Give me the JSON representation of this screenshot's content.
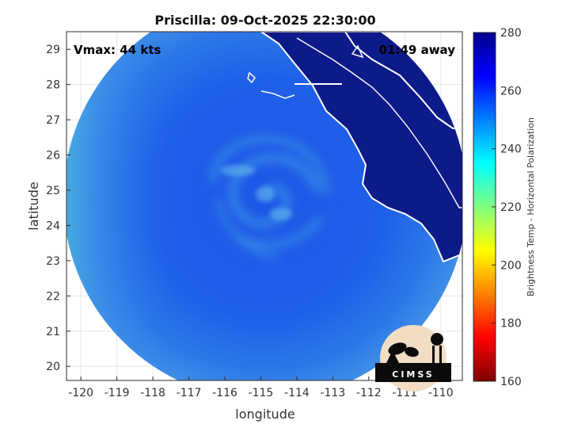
{
  "title": "Priscilla: 09-Oct-2025 22:30:00",
  "annotations": {
    "vmax": "Vmax: 44 kts",
    "time_away": "01:49 away"
  },
  "axes": {
    "xlabel": "longitude",
    "ylabel": "latitude",
    "x_ticks": [
      -120,
      -119,
      -118,
      -117,
      -116,
      -115,
      -114,
      -113,
      -112,
      -111,
      -110
    ],
    "y_ticks": [
      20,
      21,
      22,
      23,
      24,
      25,
      26,
      27,
      28,
      29
    ],
    "xlim": [
      -120.4,
      -109.4
    ],
    "ylim": [
      19.6,
      29.5
    ],
    "grid": true
  },
  "colorbar": {
    "label": "Brightness Temp - Horizontal Polarization",
    "ticks": [
      160,
      180,
      200,
      220,
      240,
      260,
      280
    ],
    "range": [
      160,
      280
    ],
    "colors": [
      "#7f0000",
      "#ff0000",
      "#ff8000",
      "#ffff00",
      "#80ff80",
      "#00ffff",
      "#0080ff",
      "#0000ff",
      "#00008f"
    ]
  },
  "map": {
    "storm_center": [
      -115,
      24.9
    ],
    "ocean_tb": 255,
    "land_tb": 275,
    "colors": {
      "ocean_outer": "#3f8fe6",
      "ocean_main": "#1e5fe8",
      "storm_bands": "#4aa8ea",
      "land": "#0d1a8a",
      "coast": "#ffffff"
    }
  },
  "logo": {
    "text": "CIMSS",
    "icon": "cimss-logo-icon"
  }
}
